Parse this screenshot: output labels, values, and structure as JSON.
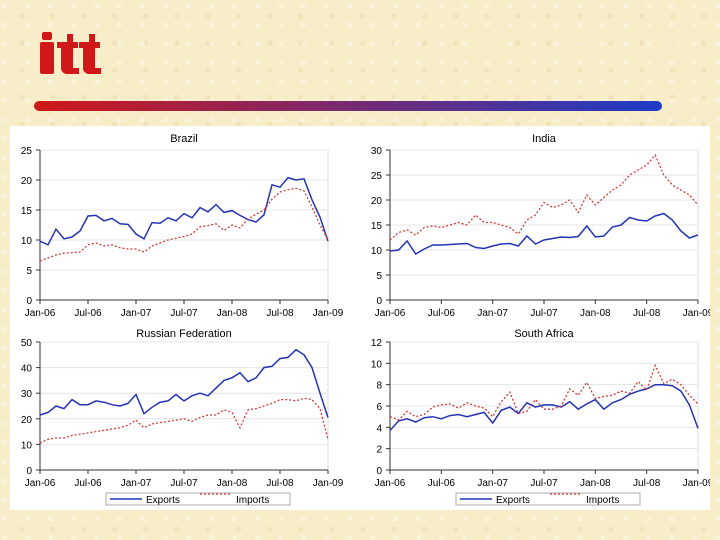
{
  "page": {
    "background": "#f7edc8"
  },
  "logo": {
    "text": "itt",
    "color": "#d01818"
  },
  "banner": {
    "from": "#d01818",
    "to": "#1e3cc8"
  },
  "legend": {
    "exports_label": "Exports",
    "imports_label": "Imports"
  },
  "colors": {
    "exports": "#2433b4",
    "imports": "#d23a3a"
  },
  "chart_data": [
    {
      "type": "line",
      "title": "Brazil",
      "x": [
        "Jan-06",
        "Feb-06",
        "Mar-06",
        "Apr-06",
        "May-06",
        "Jun-06",
        "Jul-06",
        "Aug-06",
        "Sep-06",
        "Oct-06",
        "Nov-06",
        "Dec-06",
        "Jan-07",
        "Feb-07",
        "Mar-07",
        "Apr-07",
        "May-07",
        "Jun-07",
        "Jul-07",
        "Aug-07",
        "Sep-07",
        "Oct-07",
        "Nov-07",
        "Dec-07",
        "Jan-08",
        "Feb-08",
        "Mar-08",
        "Apr-08",
        "May-08",
        "Jun-08",
        "Jul-08",
        "Aug-08",
        "Sep-08",
        "Oct-08",
        "Nov-08",
        "Dec-08",
        "Jan-09"
      ],
      "x_ticks": [
        "Jan-06",
        "Jul-06",
        "Jan-07",
        "Jul-07",
        "Jan-08",
        "Jul-08",
        "Jan-09"
      ],
      "ylim": [
        0,
        25
      ],
      "y_ticks": [
        0,
        5,
        10,
        15,
        20,
        25
      ],
      "series": [
        {
          "name": "Exports",
          "style": "solid",
          "values": [
            9.8,
            9.2,
            11.8,
            10.2,
            10.5,
            11.5,
            14.0,
            14.1,
            13.2,
            13.6,
            12.7,
            12.6,
            11.0,
            10.2,
            12.9,
            12.8,
            13.7,
            13.2,
            14.4,
            13.7,
            15.4,
            14.7,
            15.9,
            14.6,
            14.9,
            14.1,
            13.4,
            13.0,
            14.2,
            19.2,
            18.8,
            20.4,
            20.0,
            20.2,
            16.7,
            13.8,
            9.8
          ]
        },
        {
          "name": "Imports",
          "style": "dashed",
          "values": [
            6.5,
            7.0,
            7.5,
            7.8,
            7.9,
            8.0,
            9.2,
            9.5,
            9.0,
            9.2,
            8.7,
            8.5,
            8.5,
            8.0,
            9.0,
            9.5,
            10.0,
            10.3,
            10.6,
            11.0,
            12.2,
            12.4,
            12.7,
            11.6,
            12.5,
            12.0,
            13.5,
            14.3,
            15.0,
            16.8,
            18.0,
            18.4,
            18.6,
            18.2,
            15.5,
            12.5,
            10.0
          ]
        }
      ]
    },
    {
      "type": "line",
      "title": "India",
      "x": [
        "Jan-06",
        "Feb-06",
        "Mar-06",
        "Apr-06",
        "May-06",
        "Jun-06",
        "Jul-06",
        "Aug-06",
        "Sep-06",
        "Oct-06",
        "Nov-06",
        "Dec-06",
        "Jan-07",
        "Feb-07",
        "Mar-07",
        "Apr-07",
        "May-07",
        "Jun-07",
        "Jul-07",
        "Aug-07",
        "Sep-07",
        "Oct-07",
        "Nov-07",
        "Dec-07",
        "Jan-08",
        "Feb-08",
        "Mar-08",
        "Apr-08",
        "May-08",
        "Jun-08",
        "Jul-08",
        "Aug-08",
        "Sep-08",
        "Oct-08",
        "Nov-08",
        "Dec-08",
        "Jan-09"
      ],
      "x_ticks": [
        "Jan-06",
        "Jul-06",
        "Jan-07",
        "Jul-07",
        "Jan-08",
        "Jul-08",
        "Jan-09"
      ],
      "ylim": [
        0,
        30
      ],
      "y_ticks": [
        0,
        5,
        10,
        15,
        20,
        25,
        30
      ],
      "series": [
        {
          "name": "Exports",
          "style": "solid",
          "values": [
            9.8,
            10.0,
            11.8,
            9.2,
            10.2,
            11.0,
            11.0,
            11.1,
            11.2,
            11.3,
            10.5,
            10.3,
            10.8,
            11.2,
            11.3,
            10.8,
            12.8,
            11.2,
            12.0,
            12.3,
            12.6,
            12.5,
            12.7,
            14.8,
            12.6,
            12.8,
            14.6,
            15.0,
            16.5,
            16.0,
            15.8,
            16.8,
            17.3,
            16.0,
            13.8,
            12.4,
            13.0
          ]
        },
        {
          "name": "Imports",
          "style": "dashed",
          "values": [
            12.0,
            13.5,
            14.0,
            13.0,
            14.5,
            14.8,
            14.5,
            15.0,
            15.5,
            15.0,
            17.0,
            15.5,
            15.5,
            15.0,
            14.5,
            13.2,
            16.0,
            17.0,
            19.5,
            18.5,
            19.0,
            20.0,
            17.5,
            21.0,
            19.0,
            20.5,
            22.0,
            23.0,
            25.0,
            26.0,
            27.0,
            29.0,
            25.0,
            23.0,
            22.0,
            21.0,
            19.0
          ]
        }
      ]
    },
    {
      "type": "line",
      "title": "Russian Federation",
      "x": [
        "Jan-06",
        "Feb-06",
        "Mar-06",
        "Apr-06",
        "May-06",
        "Jun-06",
        "Jul-06",
        "Aug-06",
        "Sep-06",
        "Oct-06",
        "Nov-06",
        "Dec-06",
        "Jan-07",
        "Feb-07",
        "Mar-07",
        "Apr-07",
        "May-07",
        "Jun-07",
        "Jul-07",
        "Aug-07",
        "Sep-07",
        "Oct-07",
        "Nov-07",
        "Dec-07",
        "Jan-08",
        "Feb-08",
        "Mar-08",
        "Apr-08",
        "May-08",
        "Jun-08",
        "Jul-08",
        "Aug-08",
        "Sep-08",
        "Oct-08",
        "Nov-08",
        "Dec-08",
        "Jan-09"
      ],
      "x_ticks": [
        "Jan-06",
        "Jul-06",
        "Jan-07",
        "Jul-07",
        "Jan-08",
        "Jul-08",
        "Jan-09"
      ],
      "ylim": [
        0,
        50
      ],
      "y_ticks": [
        0,
        10,
        20,
        30,
        40,
        50
      ],
      "series": [
        {
          "name": "Exports",
          "style": "solid",
          "values": [
            21.5,
            22.5,
            25.0,
            24.0,
            27.5,
            25.5,
            25.5,
            27.0,
            26.5,
            25.5,
            25.0,
            26.0,
            29.5,
            22.0,
            24.5,
            26.5,
            27.0,
            29.5,
            27.0,
            29.0,
            30.0,
            29.0,
            32.0,
            35.0,
            36.0,
            38.0,
            34.5,
            36.0,
            40.0,
            40.5,
            43.5,
            44.0,
            47.0,
            45.0,
            40.0,
            30.0,
            20.5
          ]
        },
        {
          "name": "Imports",
          "style": "dashed",
          "values": [
            10.5,
            12.0,
            12.5,
            12.5,
            13.5,
            14.0,
            14.5,
            15.0,
            15.5,
            16.0,
            16.5,
            17.5,
            19.5,
            16.5,
            18.0,
            18.5,
            19.0,
            19.5,
            20.0,
            19.0,
            20.5,
            21.5,
            21.5,
            23.5,
            22.5,
            16.5,
            23.5,
            24.0,
            25.0,
            26.0,
            27.5,
            27.5,
            27.0,
            28.0,
            27.5,
            24.0,
            12.0
          ]
        }
      ]
    },
    {
      "type": "line",
      "title": "South Africa",
      "x": [
        "Jan-06",
        "Feb-06",
        "Mar-06",
        "Apr-06",
        "May-06",
        "Jun-06",
        "Jul-06",
        "Aug-06",
        "Sep-06",
        "Oct-06",
        "Nov-06",
        "Dec-06",
        "Jan-07",
        "Feb-07",
        "Mar-07",
        "Apr-07",
        "May-07",
        "Jun-07",
        "Jul-07",
        "Aug-07",
        "Sep-07",
        "Oct-07",
        "Nov-07",
        "Dec-07",
        "Jan-08",
        "Feb-08",
        "Mar-08",
        "Apr-08",
        "May-08",
        "Jun-08",
        "Jul-08",
        "Aug-08",
        "Sep-08",
        "Oct-08",
        "Nov-08",
        "Dec-08",
        "Jan-09"
      ],
      "x_ticks": [
        "Jan-06",
        "Jul-06",
        "Jan-07",
        "Jul-07",
        "Jan-08",
        "Jul-08",
        "Jan-09"
      ],
      "ylim": [
        0,
        12
      ],
      "y_ticks": [
        0,
        2,
        4,
        6,
        8,
        10,
        12
      ],
      "series": [
        {
          "name": "Exports",
          "style": "solid",
          "values": [
            3.7,
            4.6,
            4.8,
            4.5,
            4.9,
            5.0,
            4.8,
            5.1,
            5.2,
            5.0,
            5.2,
            5.4,
            4.4,
            5.6,
            5.9,
            5.3,
            6.3,
            5.9,
            6.1,
            6.1,
            5.9,
            6.4,
            5.7,
            6.2,
            6.6,
            5.7,
            6.3,
            6.6,
            7.1,
            7.4,
            7.6,
            8.0,
            8.0,
            7.9,
            7.4,
            6.1,
            3.9
          ]
        },
        {
          "name": "Imports",
          "style": "dashed",
          "values": [
            5.0,
            4.7,
            5.5,
            5.0,
            5.2,
            5.9,
            6.1,
            6.2,
            5.8,
            6.3,
            6.0,
            5.8,
            5.0,
            6.4,
            7.3,
            5.3,
            5.5,
            6.6,
            5.7,
            5.7,
            6.0,
            7.6,
            7.0,
            8.2,
            6.7,
            6.9,
            7.0,
            7.4,
            7.2,
            8.3,
            7.5,
            9.8,
            8.1,
            8.5,
            8.0,
            7.0,
            6.2
          ]
        }
      ]
    }
  ]
}
